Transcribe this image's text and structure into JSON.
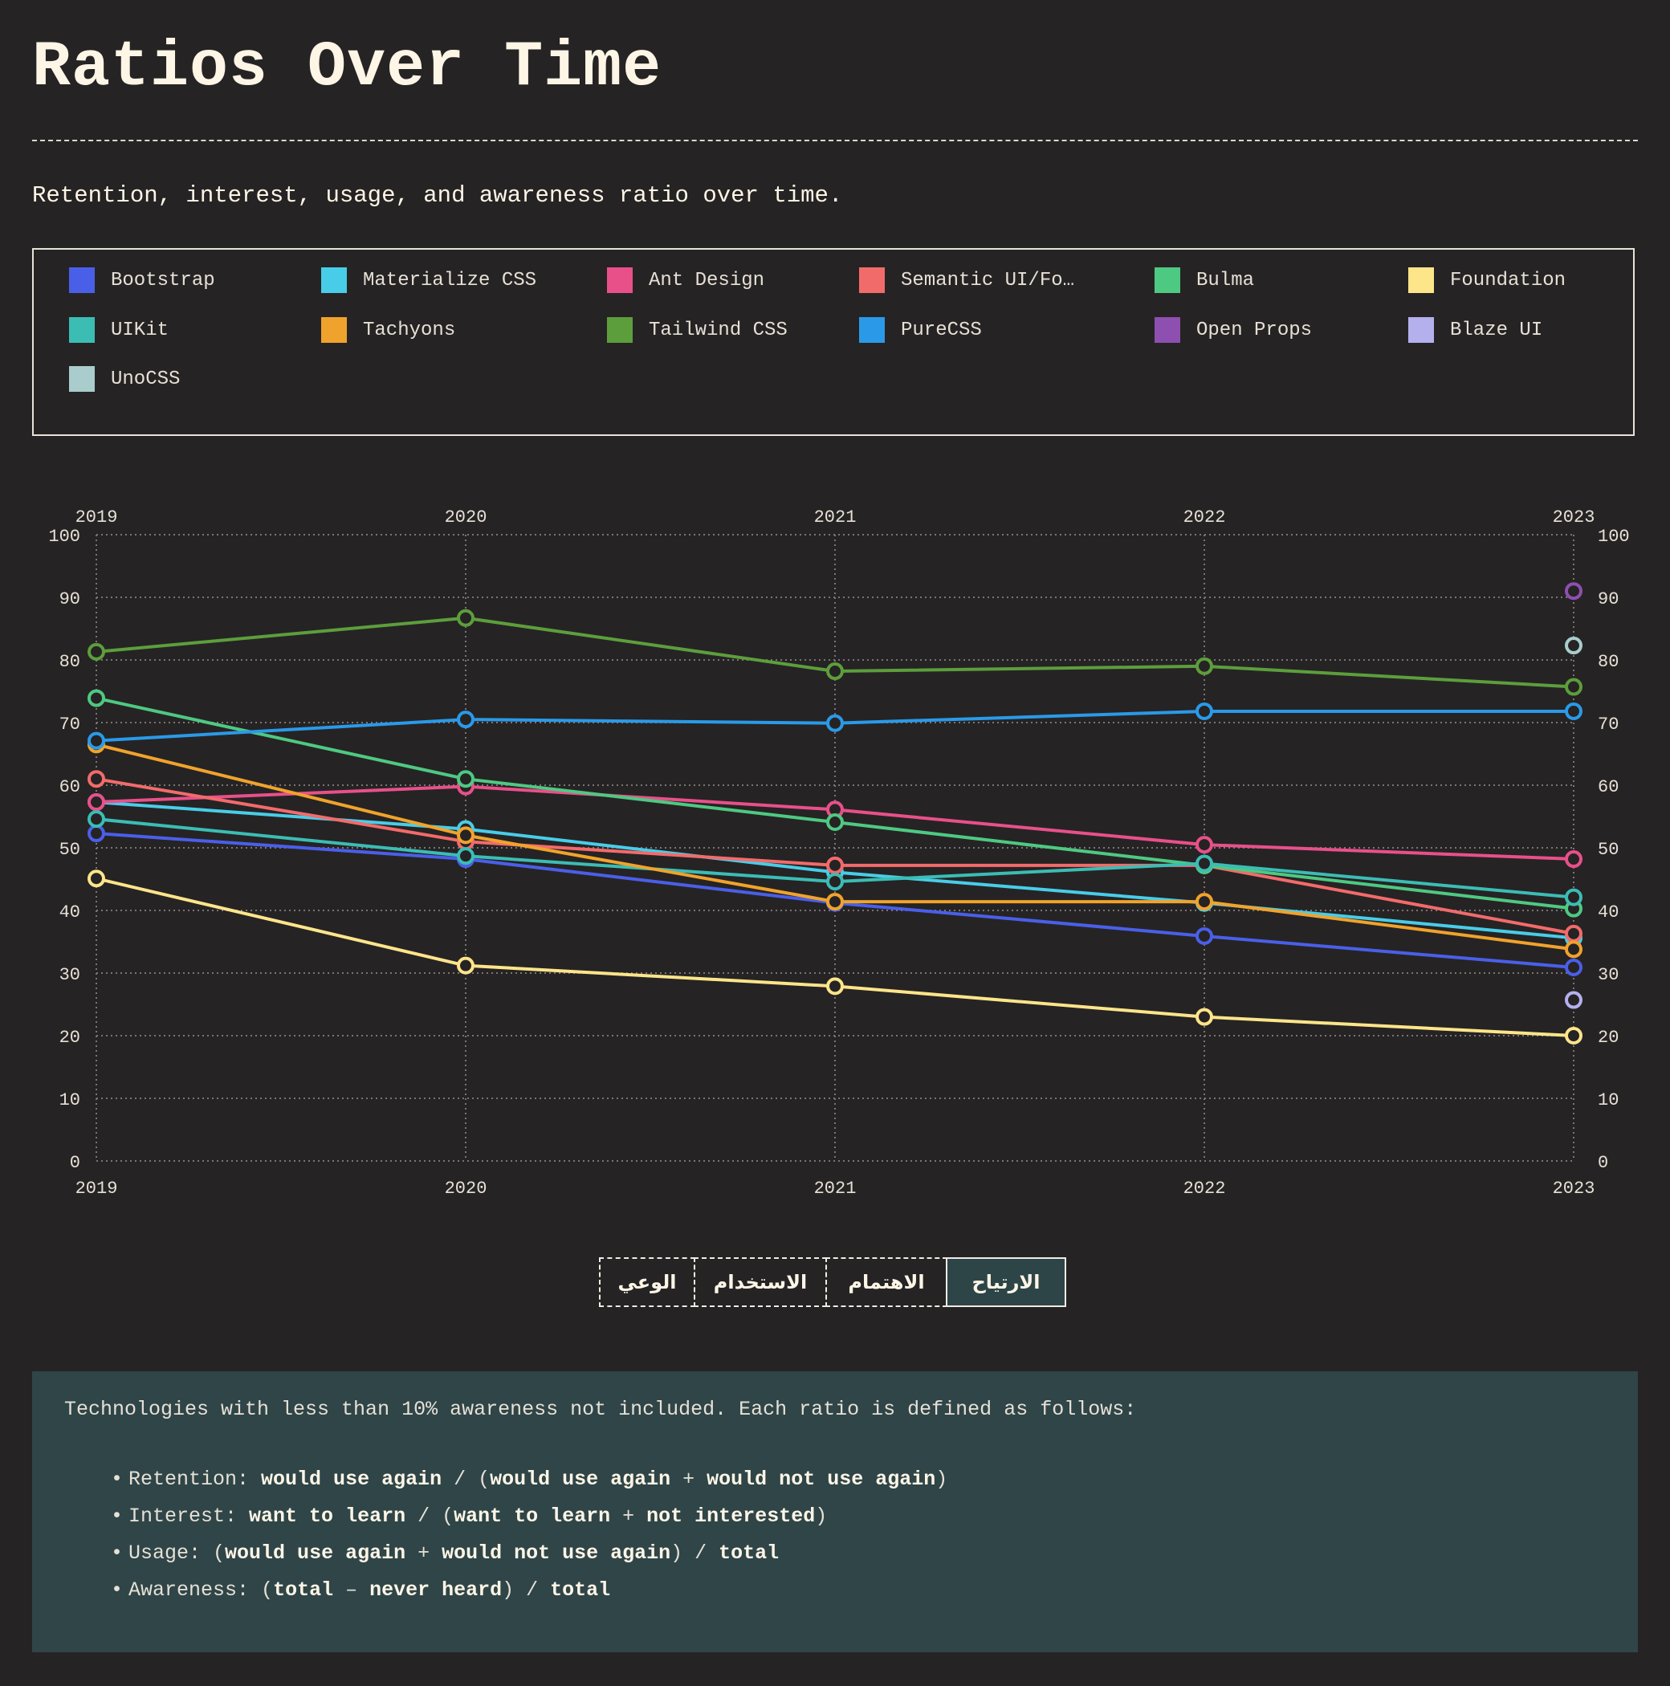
{
  "header": {
    "title": "Ratios Over Time",
    "subtitle": "Retention, interest, usage, and awareness ratio over time."
  },
  "legend": [
    {
      "name": "Bootstrap",
      "color": "#4a5fe8"
    },
    {
      "name": "Materialize CSS",
      "color": "#48cde8"
    },
    {
      "name": "Ant Design",
      "color": "#e8508a"
    },
    {
      "name": "Semantic UI/Fo…",
      "color": "#f26b6b"
    },
    {
      "name": "Bulma",
      "color": "#4ec982"
    },
    {
      "name": "Foundation",
      "color": "#fde58a"
    },
    {
      "name": "UIKit",
      "color": "#3bbdb4"
    },
    {
      "name": "Tachyons",
      "color": "#f0a32c"
    },
    {
      "name": "Tailwind CSS",
      "color": "#5c9e3c"
    },
    {
      "name": "PureCSS",
      "color": "#2a9ae8"
    },
    {
      "name": "Open Props",
      "color": "#8d4fb0"
    },
    {
      "name": "Blaze UI",
      "color": "#b4b0ee"
    },
    {
      "name": "UnoCSS",
      "color": "#a9cccc"
    }
  ],
  "tabs": [
    {
      "label": "الوعي",
      "active": false
    },
    {
      "label": "الاستخدام",
      "active": false
    },
    {
      "label": "الاهتمام",
      "active": false
    },
    {
      "label": "الارتياح",
      "active": true
    }
  ],
  "notes": {
    "intro": "Technologies with less than 10% awareness not included. Each ratio is defined as follows:",
    "items": [
      {
        "label": "Retention:",
        "formula": [
          [
            "b",
            "would use again"
          ],
          [
            "t",
            " / ("
          ],
          [
            "b",
            "would use again"
          ],
          [
            "t",
            " + "
          ],
          [
            "b",
            "would not use again"
          ],
          [
            "t",
            ")"
          ]
        ]
      },
      {
        "label": "Interest:",
        "formula": [
          [
            "b",
            "want to learn"
          ],
          [
            "t",
            " / ("
          ],
          [
            "b",
            "want to learn"
          ],
          [
            "t",
            " + "
          ],
          [
            "b",
            "not interested"
          ],
          [
            "t",
            ")"
          ]
        ]
      },
      {
        "label": "Usage:",
        "formula": [
          [
            "t",
            "("
          ],
          [
            "b",
            "would use again"
          ],
          [
            "t",
            " + "
          ],
          [
            "b",
            "would not use again"
          ],
          [
            "t",
            ") / "
          ],
          [
            "b",
            "total"
          ]
        ]
      },
      {
        "label": "Awareness:",
        "formula": [
          [
            "t",
            "("
          ],
          [
            "b",
            "total"
          ],
          [
            "t",
            " – "
          ],
          [
            "b",
            "never heard"
          ],
          [
            "t",
            ") / "
          ],
          [
            "b",
            "total"
          ]
        ]
      }
    ]
  },
  "chart_data": {
    "type": "line",
    "x": [
      "2019",
      "2020",
      "2021",
      "2022",
      "2023"
    ],
    "ylim": [
      0,
      100
    ],
    "yticks": [
      0,
      10,
      20,
      30,
      40,
      50,
      60,
      70,
      80,
      90,
      100
    ],
    "grid": true,
    "series": [
      {
        "name": "Bootstrap",
        "color": "#4a5fe8",
        "values": [
          52.3,
          48.2,
          41.2,
          35.9,
          30.9
        ]
      },
      {
        "name": "Materialize CSS",
        "color": "#48cde8",
        "values": [
          57.3,
          53.0,
          46.1,
          41.2,
          35.6
        ]
      },
      {
        "name": "Ant Design",
        "color": "#e8508a",
        "values": [
          57.3,
          59.8,
          56.1,
          50.5,
          48.2
        ]
      },
      {
        "name": "Semantic UI/Fo…",
        "color": "#f26b6b",
        "values": [
          61.0,
          51.0,
          47.2,
          47.2,
          36.3
        ]
      },
      {
        "name": "Bulma",
        "color": "#4ec982",
        "values": [
          73.9,
          61.0,
          54.1,
          47.2,
          40.3
        ]
      },
      {
        "name": "Foundation",
        "color": "#fde58a",
        "values": [
          45.1,
          31.2,
          27.9,
          23.0,
          20.0
        ]
      },
      {
        "name": "UIKit",
        "color": "#3bbdb4",
        "values": [
          54.6,
          48.7,
          44.6,
          47.5,
          42.1
        ]
      },
      {
        "name": "Tachyons",
        "color": "#f0a32c",
        "values": [
          66.5,
          52.0,
          41.4,
          41.4,
          33.8
        ]
      },
      {
        "name": "Tailwind CSS",
        "color": "#5c9e3c",
        "values": [
          81.3,
          86.7,
          78.2,
          79.0,
          75.7
        ]
      },
      {
        "name": "PureCSS",
        "color": "#2a9ae8",
        "values": [
          67.1,
          70.5,
          69.9,
          71.8,
          71.8
        ]
      },
      {
        "name": "Open Props",
        "color": "#8d4fb0",
        "values": [
          null,
          null,
          null,
          null,
          91.0
        ]
      },
      {
        "name": "Blaze UI",
        "color": "#b4b0ee",
        "values": [
          null,
          null,
          null,
          null,
          25.7
        ]
      },
      {
        "name": "UnoCSS",
        "color": "#a9cccc",
        "values": [
          null,
          null,
          null,
          null,
          82.3
        ]
      }
    ]
  }
}
